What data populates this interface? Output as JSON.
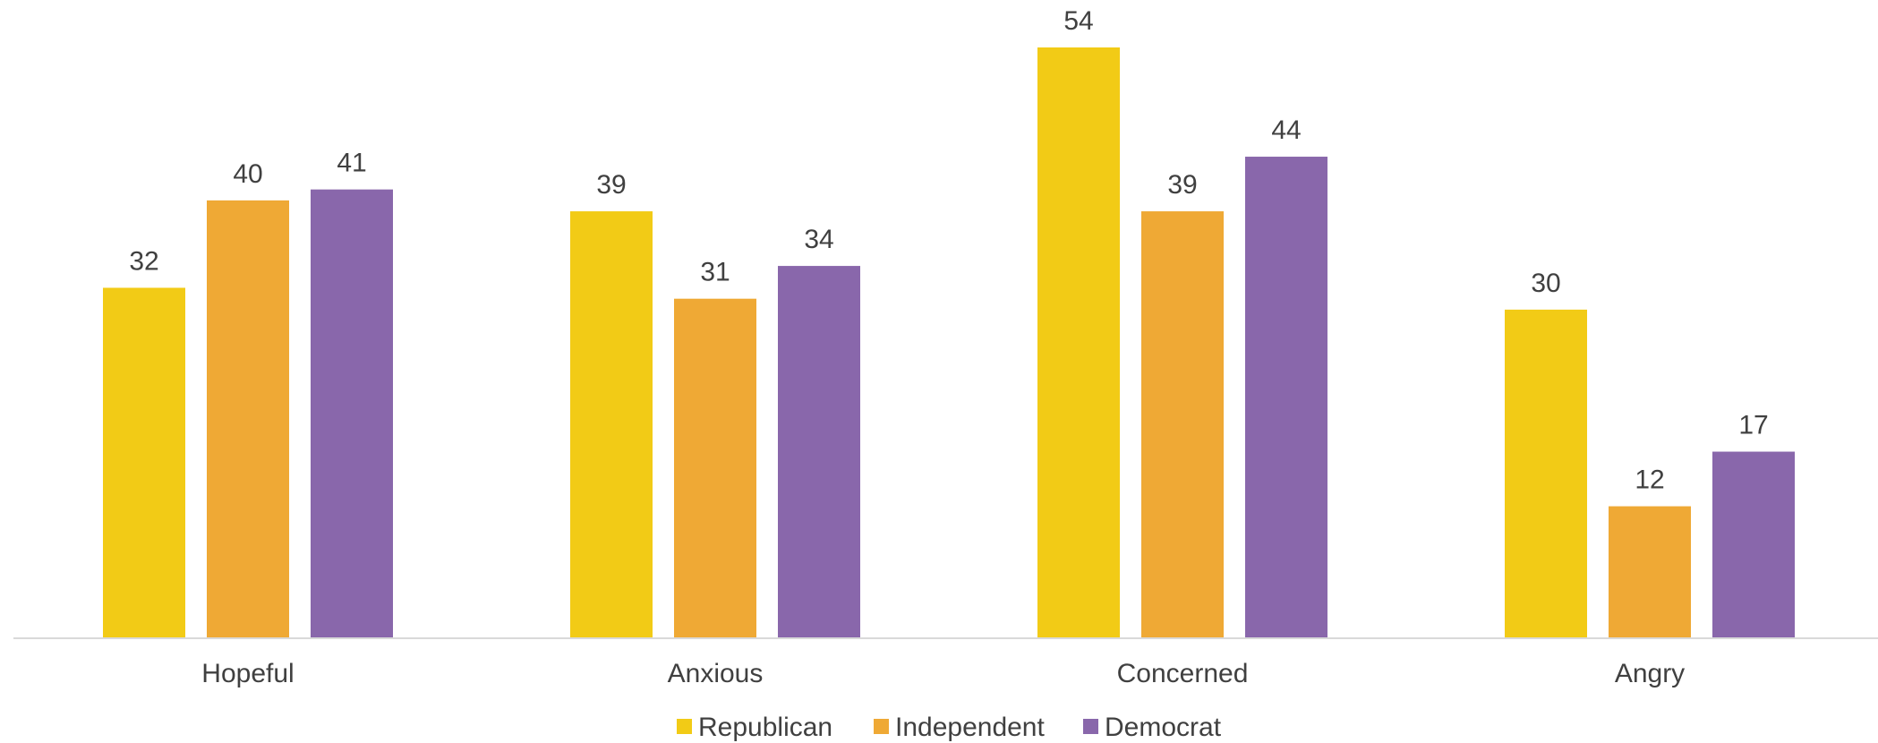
{
  "chart_data": {
    "type": "bar",
    "title": "",
    "xlabel": "",
    "ylabel": "",
    "categories": [
      "Hopeful",
      "Anxious",
      "Concerned",
      "Angry"
    ],
    "series": [
      {
        "name": "Republican",
        "color": "#F2CB16",
        "values": [
          32,
          39,
          54,
          30
        ]
      },
      {
        "name": "Independent",
        "color": "#EFA935",
        "values": [
          40,
          31,
          39,
          12
        ]
      },
      {
        "name": "Democrat",
        "color": "#8967AB",
        "values": [
          41,
          34,
          44,
          17
        ]
      }
    ],
    "ylim": [
      0,
      59
    ],
    "data_labels": true,
    "grid": false,
    "legend_position": "bottom"
  }
}
